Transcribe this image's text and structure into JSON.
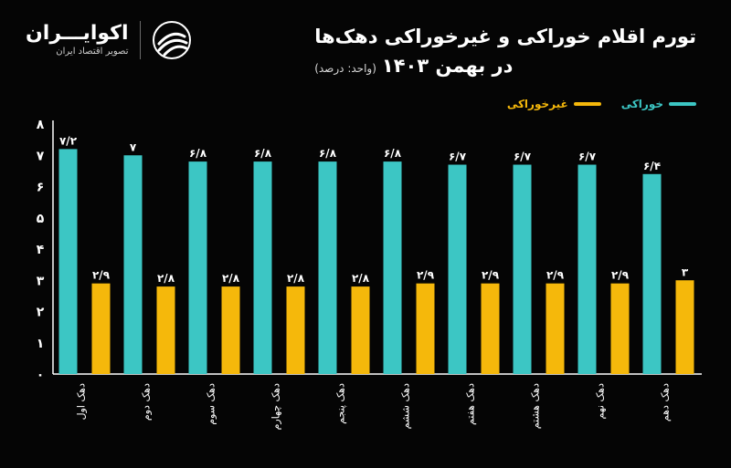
{
  "brand": {
    "name": "اکوایـــران",
    "tagline": "تصویر اقتصاد ایران"
  },
  "header": {
    "title_line1": "تورم اقلام خوراکی و غیرخوراکی دهک‌ها",
    "title_line2": "در بهمن ۱۴۰۳",
    "unit_note": "(واحد: درصد)"
  },
  "colors": {
    "food": "#3cc6c4",
    "nonfood": "#f5b80b",
    "axis": "#ffffff",
    "background": "#050505"
  },
  "chart_data": {
    "type": "bar",
    "categories": [
      "دهک اول",
      "دهک دوم",
      "دهک سوم",
      "دهک چهارم",
      "دهک پنجم",
      "دهک ششم",
      "دهک هفتم",
      "دهک هشتم",
      "دهک نهم",
      "دهک دهم"
    ],
    "series": [
      {
        "name": "خوراکی",
        "values": [
          7.2,
          7.0,
          6.8,
          6.8,
          6.8,
          6.8,
          6.7,
          6.7,
          6.7,
          6.4
        ],
        "labels": [
          "۷/۲",
          "۷",
          "۶/۸",
          "۶/۸",
          "۶/۸",
          "۶/۸",
          "۶/۷",
          "۶/۷",
          "۶/۷",
          "۶/۴"
        ],
        "color": "#3cc6c4"
      },
      {
        "name": "غیرخوراکی",
        "values": [
          2.9,
          2.8,
          2.8,
          2.8,
          2.8,
          2.9,
          2.9,
          2.9,
          2.9,
          3.0
        ],
        "labels": [
          "۲/۹",
          "۲/۸",
          "۲/۸",
          "۲/۸",
          "۲/۸",
          "۲/۹",
          "۲/۹",
          "۲/۹",
          "۲/۹",
          "۳"
        ],
        "color": "#f5b80b"
      }
    ],
    "y_ticks": [
      0,
      1,
      2,
      3,
      4,
      5,
      6,
      7,
      8
    ],
    "y_tick_labels": [
      "۰",
      "۱",
      "۲",
      "۳",
      "۴",
      "۵",
      "۶",
      "۷",
      "۸"
    ],
    "ylim": [
      0,
      8
    ],
    "grid": false,
    "legend_position": "top-right"
  }
}
